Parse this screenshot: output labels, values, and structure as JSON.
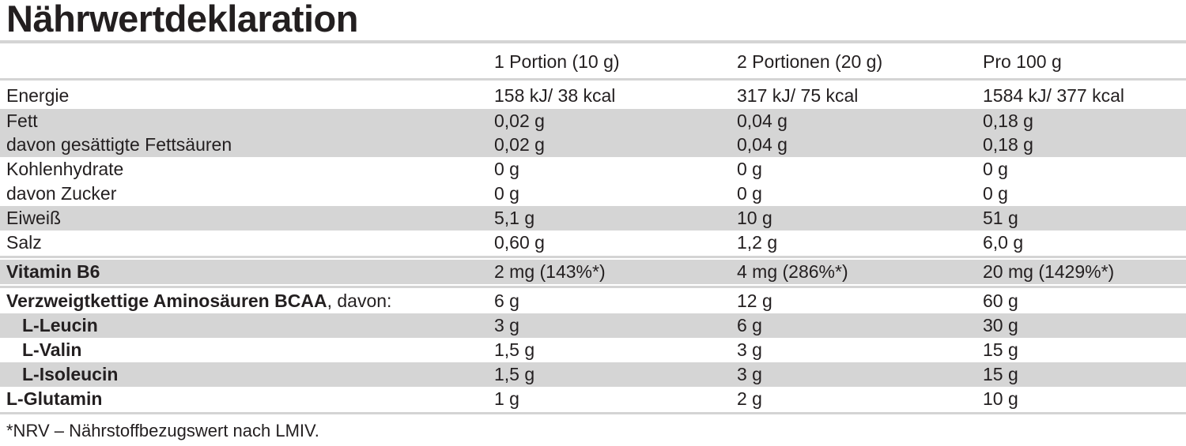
{
  "header": {
    "title": "Nährwertdeklaration"
  },
  "table": {
    "columns": [
      "1 Portion (10 g)",
      "2 Portionen (20 g)",
      "Pro 100 g"
    ],
    "rows": [
      {
        "label": "Energie",
        "values": [
          "158 kJ/ 38 kcal",
          "317 kJ/ 75 kcal",
          "1584 kJ/ 377 kcal"
        ]
      },
      {
        "label": "Fett",
        "values": [
          "0,02 g",
          "0,04 g",
          "0,18 g"
        ]
      },
      {
        "label": "davon gesättigte Fettsäuren",
        "values": [
          "0,02 g",
          "0,04 g",
          "0,18 g"
        ]
      },
      {
        "label": "Kohlenhydrate",
        "values": [
          "0 g",
          "0 g",
          "0 g"
        ]
      },
      {
        "label": "davon Zucker",
        "values": [
          "0 g",
          "0 g",
          "0 g"
        ]
      },
      {
        "label": "Eiweiß",
        "values": [
          "5,1 g",
          "10 g",
          "51 g"
        ]
      },
      {
        "label": "Salz",
        "values": [
          "0,60 g",
          "1,2 g",
          "6,0 g"
        ]
      },
      {
        "label": "Vitamin B6",
        "values": [
          "2 mg (143%*)",
          "4 mg (286%*)",
          "20 mg (1429%*)"
        ]
      },
      {
        "label": "Verzweigtkettige Aminosäuren BCAA",
        "label_suffix": ", davon:",
        "values": [
          "6 g",
          "12 g",
          "60 g"
        ]
      },
      {
        "label": "L-Leucin",
        "values": [
          "3 g",
          "6 g",
          "30 g"
        ]
      },
      {
        "label": "L-Valin",
        "values": [
          "1,5 g",
          "3 g",
          "15 g"
        ]
      },
      {
        "label": "L-Isoleucin",
        "values": [
          "1,5 g",
          "3 g",
          "15 g"
        ]
      },
      {
        "label": "L-Glutamin",
        "values": [
          "1 g",
          "2 g",
          "10 g"
        ]
      }
    ]
  },
  "footnote": "*NRV – Nährstoffbezugswert nach LMIV."
}
